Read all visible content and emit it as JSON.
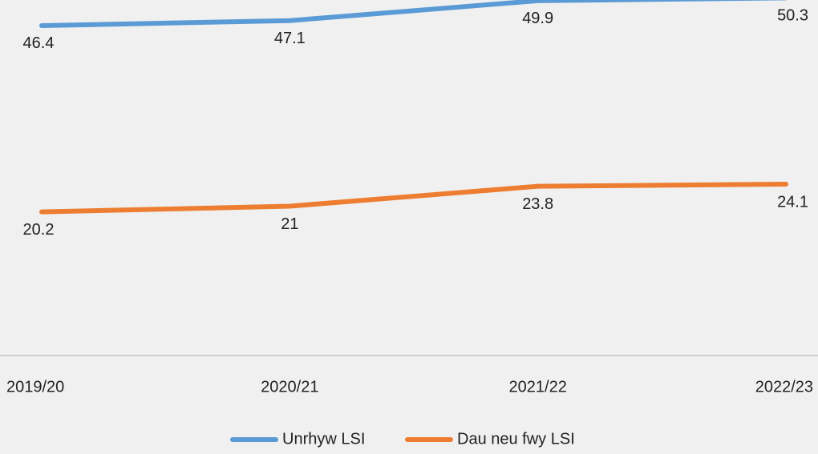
{
  "chart_data": {
    "type": "line",
    "categories": [
      "2019/20",
      "2020/21",
      "2021/22",
      "2022/23"
    ],
    "series": [
      {
        "name": "Unrhyw LSI",
        "color": "#5b9bd5",
        "values": [
          46.4,
          47.1,
          49.9,
          50.3
        ]
      },
      {
        "name": "Dau neu fwy LSI",
        "color": "#ed7d31",
        "values": [
          20.2,
          21,
          23.8,
          24.1
        ]
      }
    ],
    "ylim": [
      0,
      50
    ],
    "legend": "bottom"
  }
}
